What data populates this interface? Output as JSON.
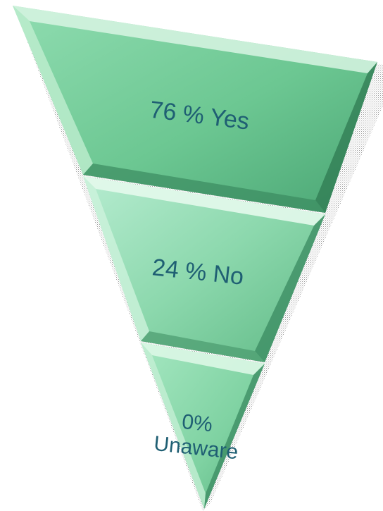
{
  "funnel": {
    "segments": [
      {
        "label": "76 % Yes",
        "lines": [
          "76 % Yes"
        ],
        "value": 76
      },
      {
        "label": "24 % No",
        "lines": [
          "24 % No"
        ],
        "value": 24
      },
      {
        "label": "0% Unaware",
        "lines": [
          "0%",
          "Unaware"
        ],
        "value": 0
      }
    ],
    "colors": {
      "fill_light": "#a8e6c2",
      "fill_mid": "#74c997",
      "fill_dark": "#3f9a68",
      "bevel_light": "#d8f5e3",
      "bevel_dark": "#2f7a52",
      "text": "#1f5f73",
      "shadow": "#9a9a9a"
    }
  }
}
